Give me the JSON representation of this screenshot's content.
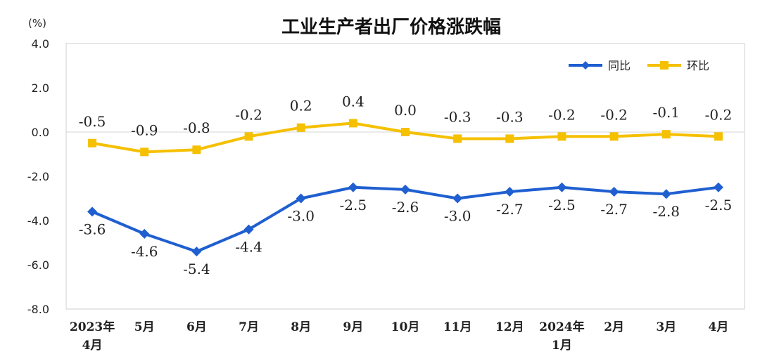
{
  "chart_data": {
    "type": "line",
    "title": "工业生产者出厂价格涨跌幅",
    "unit": "(%)",
    "categories": [
      [
        "2023年",
        "4月"
      ],
      [
        "5月"
      ],
      [
        "6月"
      ],
      [
        "7月"
      ],
      [
        "8月"
      ],
      [
        "9月"
      ],
      [
        "10月"
      ],
      [
        "11月"
      ],
      [
        "12月"
      ],
      [
        "2024年",
        "1月"
      ],
      [
        "2月"
      ],
      [
        "3月"
      ],
      [
        "4月"
      ]
    ],
    "ylim": [
      -8.0,
      4.0
    ],
    "yticks": [
      "4.0",
      "2.0",
      "0.0",
      "-2.0",
      "-4.0",
      "-6.0",
      "-8.0"
    ],
    "ytick_values": [
      4,
      2,
      0,
      -2,
      -4,
      -6,
      -8
    ],
    "legend_position": "top-right",
    "series": [
      {
        "name": "同比",
        "color": "#1f5fd0",
        "marker": "diamond",
        "values": [
          -3.6,
          -4.6,
          -5.4,
          -4.4,
          -3.0,
          -2.5,
          -2.6,
          -3.0,
          -2.7,
          -2.5,
          -2.7,
          -2.8,
          -2.5
        ],
        "labels": [
          "-3.6",
          "-4.6",
          "-5.4",
          "-4.4",
          "-3.0",
          "-2.5",
          "-2.6",
          "-3.0",
          "-2.7",
          "-2.5",
          "-2.7",
          "-2.8",
          "-2.5"
        ]
      },
      {
        "name": "环比",
        "color": "#f5c000",
        "marker": "square",
        "values": [
          -0.5,
          -0.9,
          -0.8,
          -0.2,
          0.2,
          0.4,
          0.0,
          -0.3,
          -0.3,
          -0.2,
          -0.2,
          -0.1,
          -0.2
        ],
        "labels": [
          "-0.5",
          "-0.9",
          "-0.8",
          "-0.2",
          "0.2",
          "0.4",
          "0.0",
          "-0.3",
          "-0.3",
          "-0.2",
          "-0.2",
          "-0.1",
          "-0.2"
        ]
      }
    ]
  }
}
